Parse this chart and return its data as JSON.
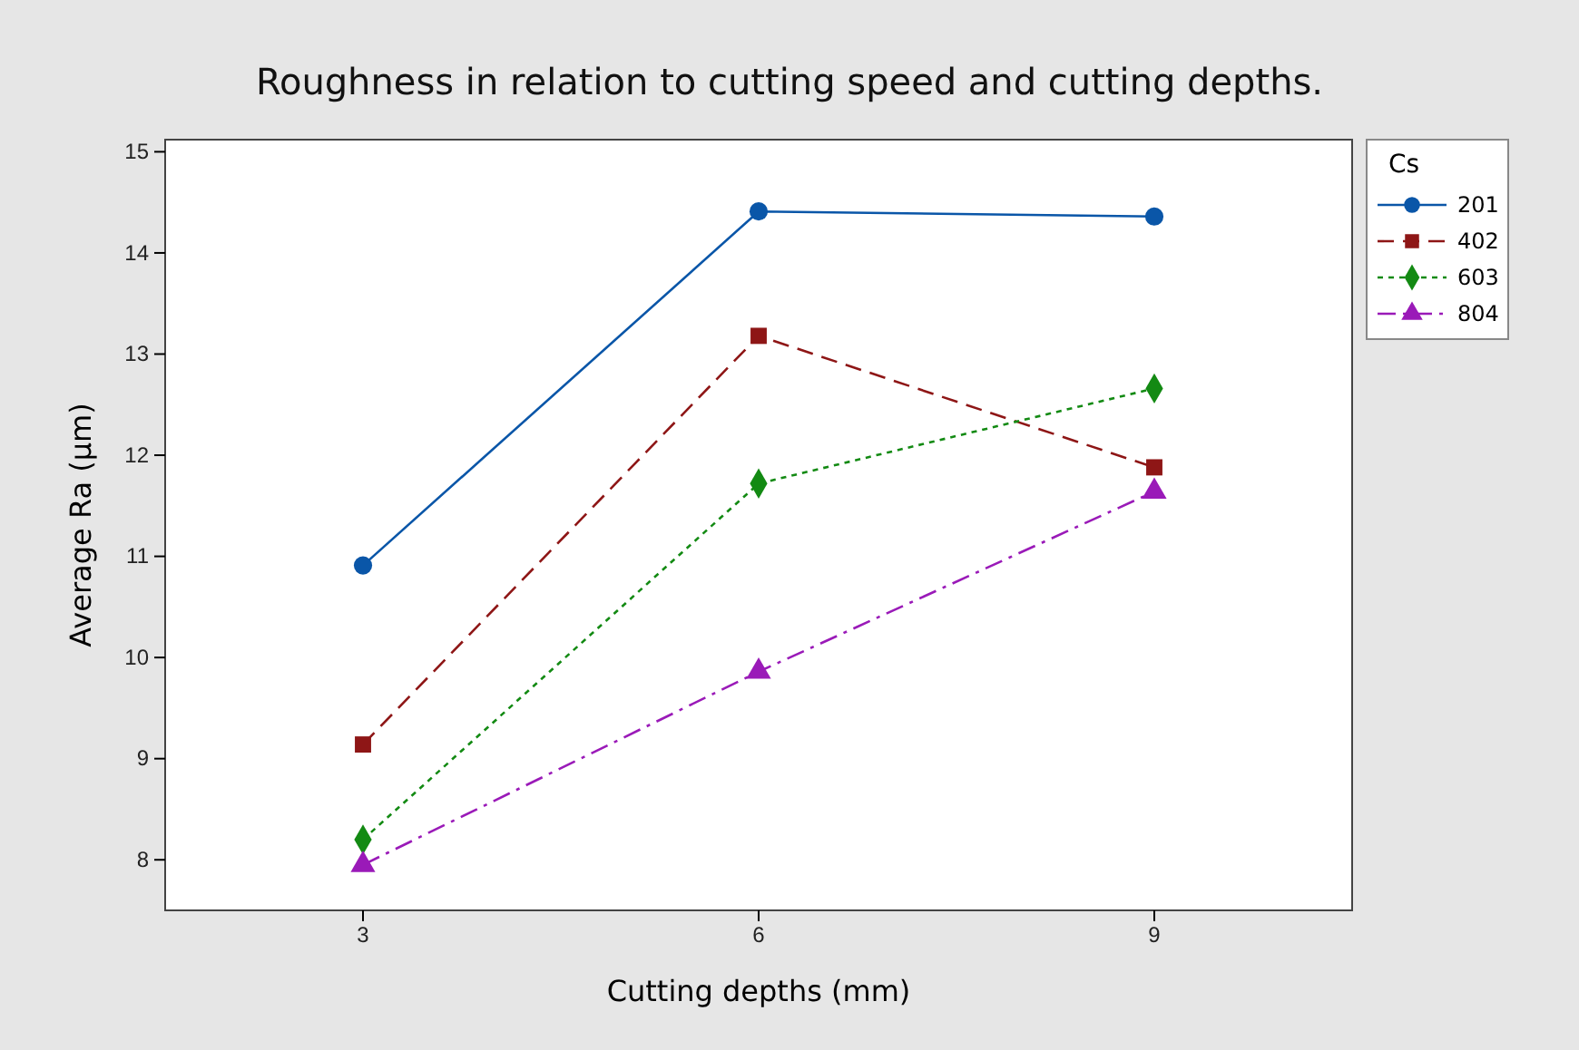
{
  "chart_data": {
    "type": "line",
    "title": "Roughness in relation to cutting speed and cutting depths.",
    "xlabel": "Cutting depths (mm)",
    "ylabel": "Average Ra (µm)",
    "legend_title": "Cs",
    "legend": "top right",
    "grid": false,
    "x": [
      3,
      6,
      9
    ],
    "xlim": [
      1.5,
      10.5
    ],
    "xticks": [
      3,
      6,
      9
    ],
    "ylim": [
      7.5,
      15.12
    ],
    "yticks": [
      8,
      9,
      10,
      11,
      12,
      13,
      14,
      15
    ],
    "series": [
      {
        "name": "201",
        "color": "#0a56a8",
        "marker": "circle",
        "line_style": "solid",
        "values": [
          10.91,
          14.41,
          14.36
        ]
      },
      {
        "name": "402",
        "color": "#8e1616",
        "marker": "square",
        "line_style": "dashed",
        "values": [
          9.14,
          13.18,
          11.88
        ]
      },
      {
        "name": "603",
        "color": "#138a13",
        "marker": "diamond",
        "line_style": "dotted",
        "values": [
          8.2,
          11.72,
          12.66
        ]
      },
      {
        "name": "804",
        "color": "#9a1ab8",
        "marker": "triangle",
        "line_style": "dashdot",
        "values": [
          7.95,
          9.86,
          11.64
        ]
      }
    ]
  }
}
